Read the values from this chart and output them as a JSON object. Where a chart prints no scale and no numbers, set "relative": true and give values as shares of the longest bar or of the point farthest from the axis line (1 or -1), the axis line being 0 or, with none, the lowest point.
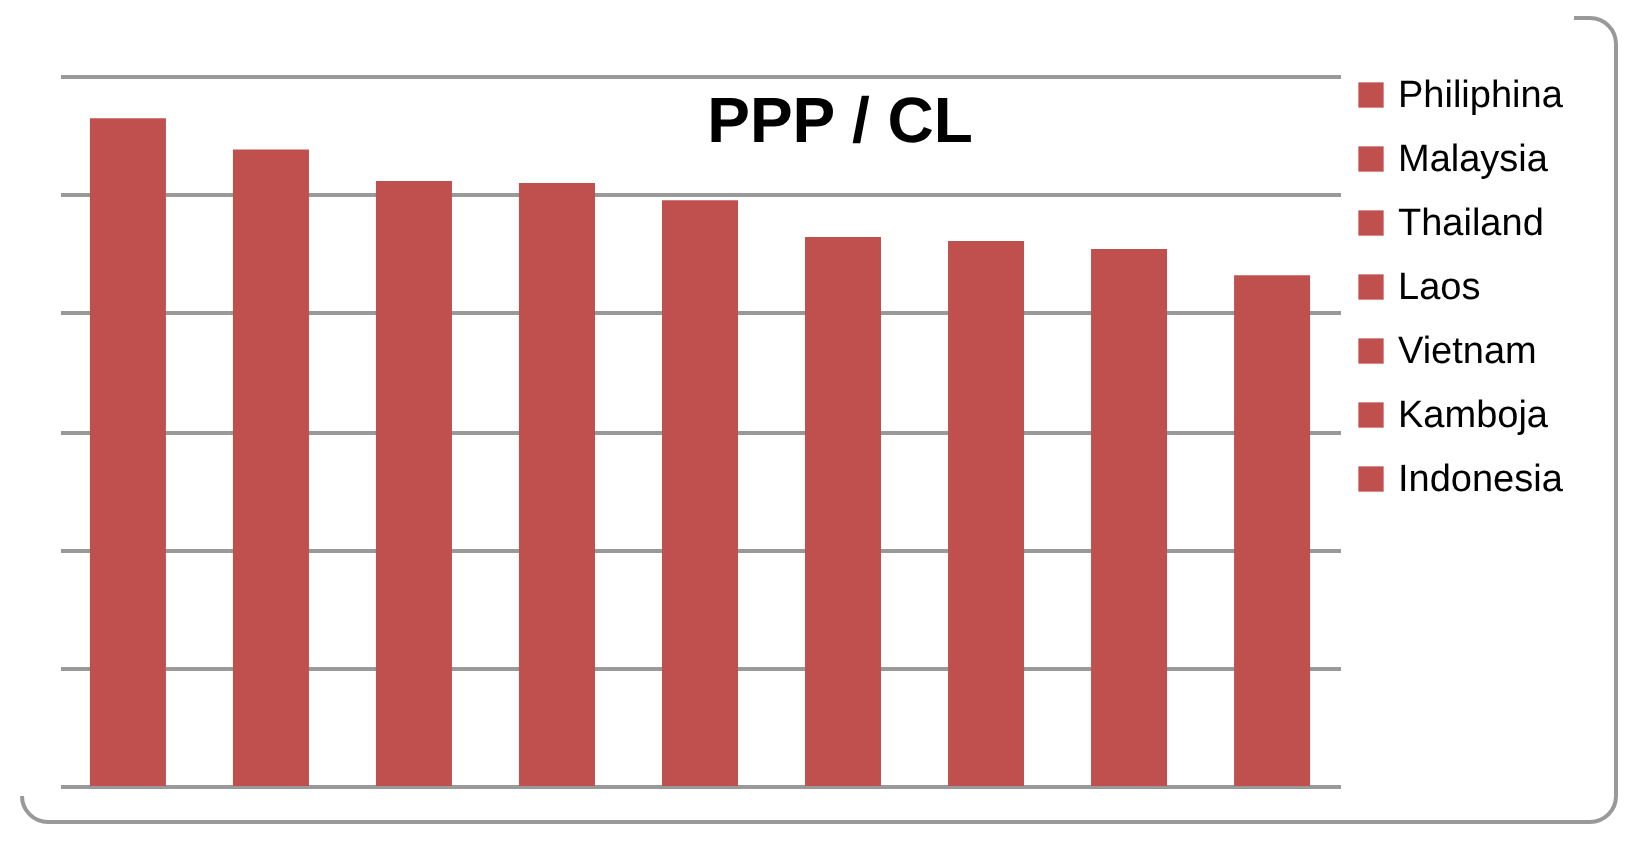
{
  "chart_data": {
    "type": "bar",
    "title": "PPP / CL",
    "relative": true,
    "stacked": true,
    "grid": "y",
    "legend": "right",
    "categories": [
      null,
      null,
      null,
      null,
      null,
      null,
      null,
      null,
      null
    ],
    "series": [
      {
        "name": "Philiphina",
        "color": "#c0504d",
        "values": [
          1,
          null,
          null,
          null,
          null,
          null,
          null,
          null,
          null
        ]
      },
      {
        "name": "Malaysia",
        "color": "#c0504d",
        "values": [
          null,
          0.953,
          null,
          null,
          null,
          null,
          null,
          null,
          null
        ]
      },
      {
        "name": "Thailand",
        "color": "#c0504d",
        "values": [
          null,
          null,
          0.906,
          null,
          null,
          null,
          null,
          null,
          null
        ]
      },
      {
        "name": "Laos",
        "color": "#c0504d",
        "values": [
          null,
          null,
          null,
          0.903,
          null,
          null,
          null,
          null,
          null
        ]
      },
      {
        "name": "Vietnam",
        "color": "#c0504d",
        "values": [
          null,
          null,
          null,
          null,
          0.877,
          null,
          null,
          null,
          null
        ]
      },
      {
        "name": "Kamboja",
        "color": "#c0504d",
        "values": [
          null,
          null,
          null,
          null,
          null,
          0.822,
          null,
          null,
          null
        ]
      },
      {
        "name": "Indonesia",
        "color": "#c0504d",
        "values": [
          null,
          null,
          null,
          null,
          null,
          null,
          0.816,
          null,
          null
        ]
      },
      {
        "color": "#c0504d",
        "values": [
          null,
          null,
          null,
          null,
          null,
          null,
          null,
          0.804,
          null
        ]
      },
      {
        "color": "#c0504d",
        "values": [
          null,
          null,
          null,
          null,
          null,
          null,
          null,
          null,
          0.765
        ]
      }
    ]
  }
}
